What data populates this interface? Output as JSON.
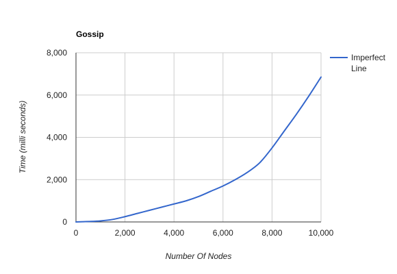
{
  "chart_data": {
    "type": "line",
    "title": "Gossip",
    "xlabel": "Number Of Nodes",
    "ylabel": "Time (milli seconds)",
    "xlim": [
      0,
      10000
    ],
    "ylim": [
      0,
      8000
    ],
    "x_ticks": [
      0,
      2000,
      4000,
      6000,
      8000,
      10000
    ],
    "y_ticks": [
      0,
      2000,
      4000,
      6000,
      8000
    ],
    "x_tick_labels": [
      "0",
      "2,000",
      "4,000",
      "6,000",
      "8,000",
      "10,000"
    ],
    "y_tick_labels": [
      "0",
      "2,000",
      "4,000",
      "6,000",
      "8,000"
    ],
    "grid": true,
    "legend_position": "right",
    "series": [
      {
        "name": "Imperfect Line",
        "legend_lines": [
          "Imperfect",
          "Line"
        ],
        "color": "#3366cc",
        "x": [
          0,
          500,
          1000,
          1500,
          2000,
          2500,
          3000,
          3500,
          4000,
          4500,
          5000,
          5500,
          6000,
          6500,
          7000,
          7500,
          8000,
          8500,
          9000,
          9500,
          10000
        ],
        "y": [
          0,
          20,
          50,
          120,
          250,
          400,
          550,
          700,
          850,
          1000,
          1200,
          1450,
          1700,
          2000,
          2350,
          2800,
          3500,
          4300,
          5100,
          5950,
          6850
        ]
      }
    ]
  }
}
